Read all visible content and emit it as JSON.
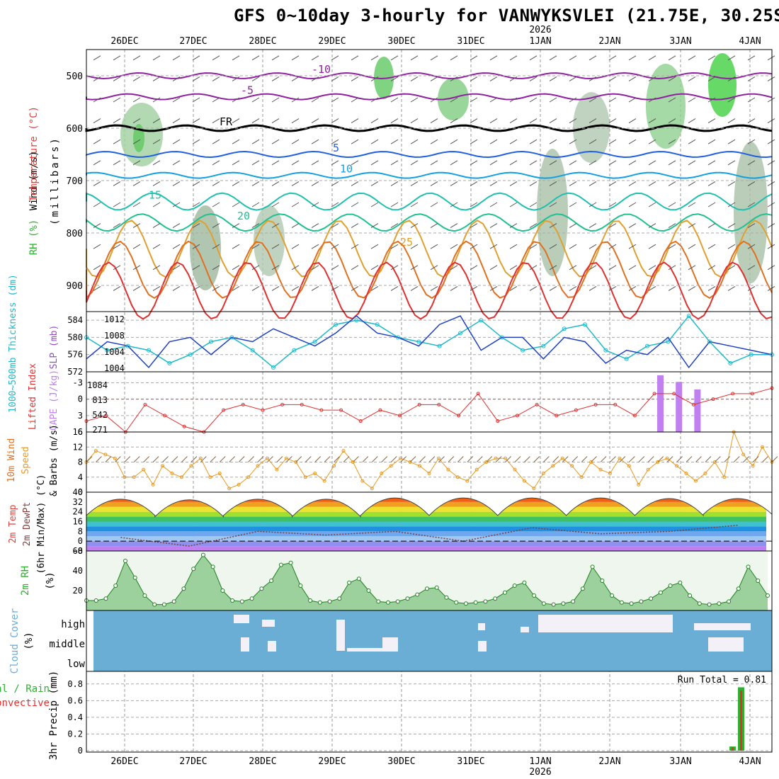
{
  "title": "GFS 0~10day 3-hourly for VANWYKSVLEI (21.75E, 30.25S)",
  "colors": {
    "wind": "#555555",
    "temp": "#e0403a",
    "rh": "#30b030",
    "thick": "#20b8c8",
    "slp": "#2040c0",
    "li": "#e03030",
    "cape": "#c080f0",
    "wind10": "#e89a20",
    "cloud": "#6aaed6",
    "precip_total": "#30b030",
    "precip_conv": "#e03030"
  },
  "chart_data": [
    {
      "type": "heatmap",
      "name": "upper-air",
      "ylabel_parts": [
        "RH (%)",
        "Temperature (°C)",
        "Wind (m/s)"
      ],
      "ylabel2": "(millibars)",
      "y_ticks": [
        "500",
        "600",
        "700",
        "800",
        "900"
      ],
      "ylim": [
        450,
        950
      ],
      "x_top_labels": [
        "26DEC",
        "27DEC",
        "28DEC",
        "29DEC",
        "30DEC",
        "31DEC",
        "1JAN",
        "2JAN",
        "3JAN",
        "4JAN"
      ],
      "year_label": "2026",
      "contour_labels": [
        "-10",
        "-5",
        "FR",
        "FR",
        "5",
        "10",
        "15",
        "20",
        "25",
        "10",
        "15",
        "20",
        "5"
      ]
    },
    {
      "type": "line",
      "name": "thickness-slp",
      "ylabel": [
        "1000~500mb Thickness (dm)",
        "SLP (mb)"
      ],
      "left_ticks": [
        "584",
        "580",
        "576",
        "572"
      ],
      "right_ticks": [
        "1012",
        "1008",
        "1004",
        "1004"
      ],
      "series": [
        {
          "name": "Thickness",
          "values": [
            580,
            577,
            578,
            577,
            574,
            576,
            579,
            580,
            577,
            573,
            577,
            579,
            583,
            584,
            583,
            580,
            579,
            578,
            581,
            584,
            580,
            577,
            578,
            582,
            583,
            577,
            575,
            578,
            579,
            585,
            579,
            574,
            576,
            576
          ]
        },
        {
          "name": "SLP",
          "values": [
            1006,
            1010,
            1009,
            1004,
            1010,
            1011,
            1007,
            1011,
            1010,
            1013,
            1011,
            1009,
            1012,
            1016,
            1012,
            1011,
            1009,
            1014,
            1016,
            1008,
            1011,
            1011,
            1006,
            1011,
            1010,
            1005,
            1008,
            1007,
            1011,
            1004,
            1010,
            1009,
            1008,
            1007
          ]
        }
      ]
    },
    {
      "type": "bar",
      "name": "li-cape",
      "ylabel": [
        "Lifted Index",
        "CAPE (J/kg)"
      ],
      "left_ticks": [
        "-3",
        "0",
        "3",
        "6"
      ],
      "right_ticks": [
        "1084",
        "813",
        "542",
        "271"
      ],
      "li": [
        4,
        3,
        6,
        1,
        3,
        5,
        6,
        2,
        1,
        2,
        1,
        1,
        2,
        2,
        4,
        2,
        3,
        1,
        1,
        3,
        -1,
        4,
        3,
        1,
        3,
        2,
        1,
        1,
        3,
        -1,
        -1,
        1,
        0,
        -1,
        -1,
        -2
      ],
      "cape": [
        0,
        0,
        0,
        0,
        0,
        0,
        0,
        0,
        0,
        0,
        0,
        0,
        0,
        0,
        0,
        0,
        0,
        0,
        0,
        0,
        0,
        0,
        0,
        0,
        0,
        0,
        0,
        0,
        0,
        0,
        0,
        1084,
        957,
        813,
        0,
        0,
        0,
        0
      ]
    },
    {
      "type": "line",
      "name": "wind10",
      "ylabel": [
        "10m Wind Speed & Barbs (m/s)"
      ],
      "left_ticks": [
        "16",
        "12",
        "8",
        "4",
        "0"
      ],
      "ylim": [
        0,
        16
      ],
      "values": [
        8,
        11,
        10,
        9,
        4,
        4,
        6,
        2,
        7,
        5,
        4,
        7,
        9,
        4,
        5,
        1,
        2,
        4,
        7,
        9,
        6,
        9,
        8,
        4,
        5,
        3,
        7,
        11,
        8,
        3,
        1,
        5,
        7,
        9,
        8,
        7,
        5,
        9,
        6,
        4,
        3,
        6,
        8,
        9,
        9,
        6,
        3,
        1,
        5,
        7,
        9,
        7,
        4,
        8,
        6,
        5,
        9,
        7,
        2,
        6,
        8,
        9,
        7,
        5,
        3,
        5,
        8,
        4,
        16,
        10,
        7,
        12,
        8
      ]
    },
    {
      "type": "area",
      "name": "temp2m",
      "ylabel": [
        "2m Temp",
        "2m DewPt",
        "(6hr Min/Max) (°C)"
      ],
      "left_ticks": [
        "40",
        "32",
        "24",
        "16",
        "8",
        "0",
        "-8"
      ],
      "ylim": [
        -8,
        40
      ],
      "temp_max": [
        36,
        36,
        36,
        37,
        38,
        38,
        38,
        38,
        37,
        36
      ],
      "temp_min": [
        21,
        20,
        21,
        20,
        21,
        21,
        21,
        21,
        21,
        22
      ],
      "dewpt": [
        3,
        -4,
        8,
        5,
        8,
        0,
        11,
        6,
        8,
        13
      ]
    },
    {
      "type": "area",
      "name": "rh2m",
      "ylabel": [
        "2m RH",
        "(%)"
      ],
      "left_ticks": [
        "60",
        "40",
        "20"
      ],
      "ylim": [
        0,
        60
      ],
      "values": [
        10,
        10,
        12,
        25,
        50,
        33,
        15,
        6,
        6,
        9,
        22,
        42,
        56,
        44,
        20,
        10,
        9,
        12,
        22,
        30,
        46,
        48,
        25,
        10,
        8,
        9,
        12,
        28,
        32,
        20,
        9,
        8,
        9,
        12,
        16,
        22,
        23,
        13,
        8,
        7,
        8,
        9,
        12,
        18,
        25,
        28,
        15,
        7,
        6,
        7,
        9,
        22,
        44,
        30,
        15,
        8,
        7,
        9,
        12,
        18,
        25,
        28,
        15,
        7,
        6,
        7,
        9,
        22,
        44,
        30,
        15
      ]
    },
    {
      "type": "bar",
      "name": "cloud-cover",
      "ylabel": [
        "Cloud Cover",
        "(%)"
      ],
      "levels": [
        "high",
        "middle",
        "low"
      ]
    },
    {
      "type": "bar",
      "name": "precip",
      "ylabel": [
        "3hr Precip (mm)",
        "Total / Rain",
        "Convective"
      ],
      "left_ticks": [
        "0.8",
        "0.6",
        "0.4",
        "0.2",
        "0"
      ],
      "ylim": [
        0,
        0.9
      ],
      "run_total": "Run Total = 0.81",
      "total": [
        0.05,
        0.76
      ],
      "conv": [
        0.04,
        0.72
      ],
      "x_bottom_labels": [
        "26DEC",
        "27DEC",
        "28DEC",
        "29DEC",
        "30DEC",
        "31DEC",
        "1JAN",
        "2JAN",
        "3JAN",
        "4JAN"
      ],
      "year_label": "2026"
    }
  ]
}
